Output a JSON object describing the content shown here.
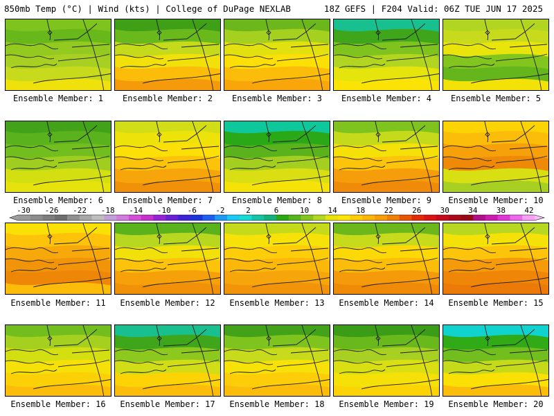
{
  "header": {
    "left_title": "850mb Temp (°C) | Wind (kts) | College of DuPage NEXLAB",
    "right_title": "18Z GEFS | F204 Valid: 06Z TUE JUN 17 2025"
  },
  "caption_prefix": "Ensemble Member:",
  "members": [
    {
      "label": "Ensemble Member: 1",
      "colors": [
        "#7ec31e",
        "#68b81c",
        "#94c91f",
        "#a8d023",
        "#c7da1c",
        "#eee10c"
      ]
    },
    {
      "label": "Ensemble Member: 2",
      "colors": [
        "#3f9f17",
        "#6ab91c",
        "#c4da1a",
        "#f1e00a",
        "#fbbd0a",
        "#f59a0a"
      ]
    },
    {
      "label": "Ensemble Member: 3",
      "colors": [
        "#6cb81c",
        "#a5d020",
        "#e2e00e",
        "#fbdf06",
        "#fcbd0a",
        "#f8a60a"
      ]
    },
    {
      "label": "Ensemble Member: 4",
      "colors": [
        "#18c08f",
        "#3fa51a",
        "#7ec31e",
        "#b1d520",
        "#e5e40c",
        "#fbe306"
      ]
    },
    {
      "label": "Ensemble Member: 5",
      "colors": [
        "#b1d520",
        "#c7da1c",
        "#e9e40c",
        "#82c51e",
        "#64b61c",
        "#f3e208"
      ]
    },
    {
      "label": "Ensemble Member: 6",
      "colors": [
        "#42a31a",
        "#5ab31c",
        "#72be1e",
        "#a0ce20",
        "#d4df12",
        "#e6e20c"
      ]
    },
    {
      "label": "Ensemble Member: 7",
      "colors": [
        "#d1dd16",
        "#ede20a",
        "#fcdf06",
        "#fbc30a",
        "#f6a50a",
        "#f19009"
      ]
    },
    {
      "label": "Ensemble Member: 8",
      "colors": [
        "#0ec79b",
        "#2aa817",
        "#5ab31c",
        "#a4cf20",
        "#d9df12",
        "#f5e208"
      ]
    },
    {
      "label": "Ensemble Member: 9",
      "colors": [
        "#7ec31e",
        "#c4da1a",
        "#f5e108",
        "#fcc40a",
        "#f59d0a",
        "#ef8b08"
      ]
    },
    {
      "label": "Ensemble Member: 10",
      "colors": [
        "#fcd406",
        "#fbbd0a",
        "#f6a00a",
        "#ef8a08",
        "#d8df12",
        "#a8d023"
      ]
    },
    {
      "label": "Ensemble Member: 11",
      "colors": [
        "#fbe006",
        "#fcc30a",
        "#f7a80a",
        "#f29409",
        "#ee8608",
        "#fbbd0a"
      ]
    },
    {
      "label": "Ensemble Member: 12",
      "colors": [
        "#5ab31c",
        "#b8d720",
        "#f1e009",
        "#fcc30a",
        "#f6a00a",
        "#f19009"
      ]
    },
    {
      "label": "Ensemble Member: 13",
      "colors": [
        "#c4da1a",
        "#f6e108",
        "#fccd08",
        "#fbb80a",
        "#f6a50a",
        "#f29409"
      ]
    },
    {
      "label": "Ensemble Member: 14",
      "colors": [
        "#6cb81c",
        "#c7da1c",
        "#fcd806",
        "#fbbd0a",
        "#f59a0a",
        "#ef8b08"
      ]
    },
    {
      "label": "Ensemble Member: 15",
      "colors": [
        "#b8d720",
        "#f4e108",
        "#fcc40a",
        "#f59a0a",
        "#ef8608",
        "#eb7a08"
      ]
    },
    {
      "label": "Ensemble Member: 16",
      "colors": [
        "#72be1e",
        "#a5d020",
        "#d4df12",
        "#f5e108",
        "#fcd006",
        "#fbbd0a"
      ]
    },
    {
      "label": "Ensemble Member: 17",
      "colors": [
        "#18c08f",
        "#3fa51a",
        "#8cc81e",
        "#d1dd16",
        "#fcd406",
        "#fbbd0a"
      ]
    },
    {
      "label": "Ensemble Member: 18",
      "colors": [
        "#42a31a",
        "#7ec31e",
        "#c7da1c",
        "#f6e108",
        "#fccd08",
        "#fbbd0a"
      ]
    },
    {
      "label": "Ensemble Member: 19",
      "colors": [
        "#3a9c17",
        "#6ab91c",
        "#a8d023",
        "#d9df12",
        "#f5e108",
        "#fcd406"
      ]
    },
    {
      "label": "Ensemble Member: 20",
      "colors": [
        "#10d3d0",
        "#30aa17",
        "#72be1e",
        "#c4da1a",
        "#fbe006",
        "#fbbd0a"
      ]
    }
  ],
  "colorbar": {
    "labels": [
      "-30",
      "-26",
      "-22",
      "-18",
      "-14",
      "-10",
      "-6",
      "-2",
      "2",
      "6",
      "10",
      "14",
      "18",
      "22",
      "26",
      "30",
      "34",
      "38",
      "42"
    ],
    "colors": [
      "#9a9a9a",
      "#8c8c8c",
      "#7d7d7d",
      "#6e6e6e",
      "#909090",
      "#a7a7a7",
      "#bebebe",
      "#c2a0d6",
      "#d17bdb",
      "#d44fd8",
      "#c631cb",
      "#9522d4",
      "#6a1fd6",
      "#3d22d6",
      "#1a35dc",
      "#1e5ff0",
      "#1e9af5",
      "#1ec8f5",
      "#17dcd6",
      "#16c4a5",
      "#12b27a",
      "#2aa816",
      "#56b41c",
      "#86c51e",
      "#b4d720",
      "#e6e40c",
      "#fce406",
      "#fccd06",
      "#fbb60a",
      "#f69d0a",
      "#f07f08",
      "#e95506",
      "#e22b06",
      "#d81414",
      "#c40a1c",
      "#a80a1c",
      "#9a0a14",
      "#b0108a",
      "#cc1cb0",
      "#e036d6",
      "#ee68ee",
      "#f6a0f6"
    ]
  }
}
